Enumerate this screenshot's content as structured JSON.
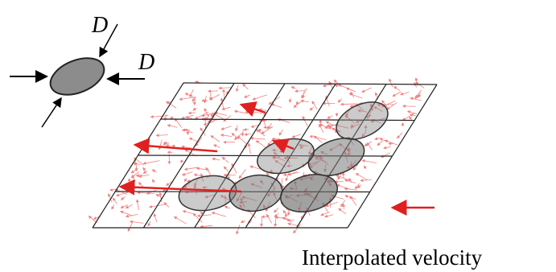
{
  "particle": {
    "force_labels": [
      "D",
      "D"
    ]
  },
  "grid": {
    "caption": "Interpolated velocity"
  }
}
